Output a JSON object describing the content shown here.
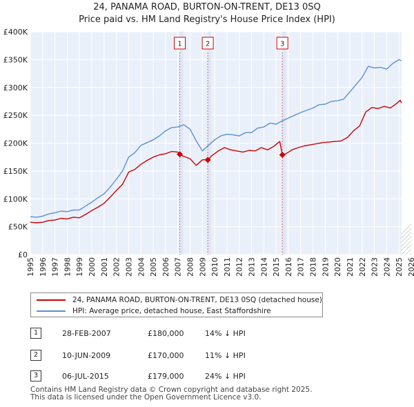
{
  "title_line1": "24, PANAMA ROAD, BURTON-ON-TRENT, DE13 0SQ",
  "title_line2": "Price paid vs. HM Land Registry's House Price Index (HPI)",
  "chart_data": {
    "type": "line",
    "y_tick_labels": [
      "£0",
      "£50K",
      "£100K",
      "£150K",
      "£200K",
      "£250K",
      "£300K",
      "£350K",
      "£400K"
    ],
    "y_ticks": [
      0,
      50000,
      100000,
      150000,
      200000,
      250000,
      300000,
      350000,
      400000
    ],
    "ylim": [
      0,
      400000
    ],
    "xlim": [
      1995,
      2026
    ],
    "x_ticks": [
      1995,
      1996,
      1997,
      1998,
      1999,
      2000,
      2001,
      2002,
      2003,
      2004,
      2005,
      2006,
      2007,
      2008,
      2009,
      2010,
      2011,
      2012,
      2013,
      2014,
      2015,
      2016,
      2017,
      2018,
      2019,
      2020,
      2021,
      2022,
      2023,
      2024,
      2025,
      2026
    ],
    "future_shade_from": 2025.2,
    "series": [
      {
        "name": "24, PANAMA ROAD, BURTON-ON-TRENT, DE13 0SQ (detached house)",
        "color": "#cc0000",
        "x": [
          1995.0,
          1995.5,
          1996.0,
          1996.5,
          1997.0,
          1997.5,
          1998.0,
          1998.5,
          1999.0,
          1999.5,
          2000.0,
          2000.5,
          2001.0,
          2001.5,
          2002.0,
          2002.5,
          2003.0,
          2003.5,
          2004.0,
          2004.5,
          2005.0,
          2005.5,
          2006.0,
          2006.5,
          2007.0,
          2007.16,
          2007.5,
          2008.0,
          2008.5,
          2009.0,
          2009.44,
          2009.8,
          2010.3,
          2010.8,
          2011.3,
          2011.8,
          2012.3,
          2012.8,
          2013.3,
          2013.8,
          2014.3,
          2014.8,
          2015.3,
          2015.51,
          2015.8,
          2016.3,
          2016.8,
          2017.3,
          2017.8,
          2018.3,
          2018.8,
          2019.3,
          2019.8,
          2020.3,
          2020.8,
          2021.3,
          2021.8,
          2022.3,
          2022.8,
          2023.3,
          2023.8,
          2024.3,
          2024.8,
          2025.1,
          2025.2
        ],
        "values": [
          58000,
          57000,
          58000,
          61000,
          62000,
          65000,
          64000,
          67000,
          66000,
          72000,
          79000,
          85000,
          92000,
          103000,
          115000,
          126000,
          148000,
          153000,
          162000,
          169000,
          175000,
          179000,
          181000,
          185000,
          184000,
          180000,
          176000,
          172000,
          160000,
          170000,
          170000,
          178000,
          186000,
          192000,
          188000,
          186000,
          184000,
          187000,
          186000,
          192000,
          188000,
          194000,
          203000,
          179000,
          181000,
          188000,
          192000,
          195000,
          197000,
          199000,
          201000,
          202000,
          203000,
          204000,
          210000,
          222000,
          231000,
          256000,
          264000,
          262000,
          266000,
          263000,
          271000,
          277000,
          272000
        ]
      },
      {
        "name": "HPI: Average price, detached house, East Staffordshire",
        "color": "#5b8fd1",
        "x": [
          1995.0,
          1995.5,
          1996.0,
          1996.5,
          1997.0,
          1997.5,
          1998.0,
          1998.5,
          1999.0,
          1999.5,
          2000.0,
          2000.5,
          2001.0,
          2001.5,
          2002.0,
          2002.5,
          2003.0,
          2003.5,
          2004.0,
          2004.5,
          2005.0,
          2005.5,
          2006.0,
          2006.5,
          2007.0,
          2007.5,
          2008.0,
          2008.5,
          2009.0,
          2009.5,
          2010.0,
          2010.5,
          2011.0,
          2011.5,
          2012.0,
          2012.5,
          2013.0,
          2013.5,
          2014.0,
          2014.5,
          2015.0,
          2015.5,
          2016.0,
          2016.5,
          2017.0,
          2017.5,
          2018.0,
          2018.5,
          2019.0,
          2019.5,
          2020.0,
          2020.5,
          2021.0,
          2021.5,
          2022.0,
          2022.5,
          2023.0,
          2023.5,
          2024.0,
          2024.5,
          2025.0,
          2025.2
        ],
        "values": [
          68000,
          67000,
          69000,
          73000,
          75000,
          78000,
          77000,
          80000,
          80000,
          87000,
          94000,
          102000,
          109000,
          121000,
          135000,
          150000,
          175000,
          183000,
          196000,
          201000,
          206000,
          213000,
          222000,
          228000,
          229000,
          233000,
          225000,
          204000,
          186000,
          196000,
          206000,
          213000,
          216000,
          215000,
          213000,
          219000,
          219000,
          227000,
          229000,
          236000,
          234000,
          240000,
          245000,
          250000,
          255000,
          259000,
          263000,
          269000,
          270000,
          275000,
          276000,
          279000,
          292000,
          305000,
          318000,
          338000,
          335000,
          336000,
          333000,
          343000,
          350000,
          348000
        ]
      }
    ],
    "sales": [
      {
        "label": "1",
        "x": 2007.16,
        "price": 180000
      },
      {
        "label": "2",
        "x": 2009.44,
        "price": 170000
      },
      {
        "label": "3",
        "x": 2015.51,
        "price": 179000
      }
    ]
  },
  "legend": {
    "property_label": "24, PANAMA ROAD, BURTON-ON-TRENT, DE13 0SQ (detached house)",
    "hpi_label": "HPI: Average price, detached house, East Staffordshire",
    "property_color": "#cc0000",
    "hpi_color": "#5b8fd1"
  },
  "sales_table": [
    {
      "num": "1",
      "date": "28-FEB-2007",
      "price": "£180,000",
      "relation": "14% ↓ HPI"
    },
    {
      "num": "2",
      "date": "10-JUN-2009",
      "price": "£170,000",
      "relation": "11% ↓ HPI"
    },
    {
      "num": "3",
      "date": "06-JUL-2015",
      "price": "£179,000",
      "relation": "24% ↓ HPI"
    }
  ],
  "footer_line1": "Contains HM Land Registry data © Crown copyright and database right 2025.",
  "footer_line2": "This data is licensed under the Open Government Licence v3.0."
}
